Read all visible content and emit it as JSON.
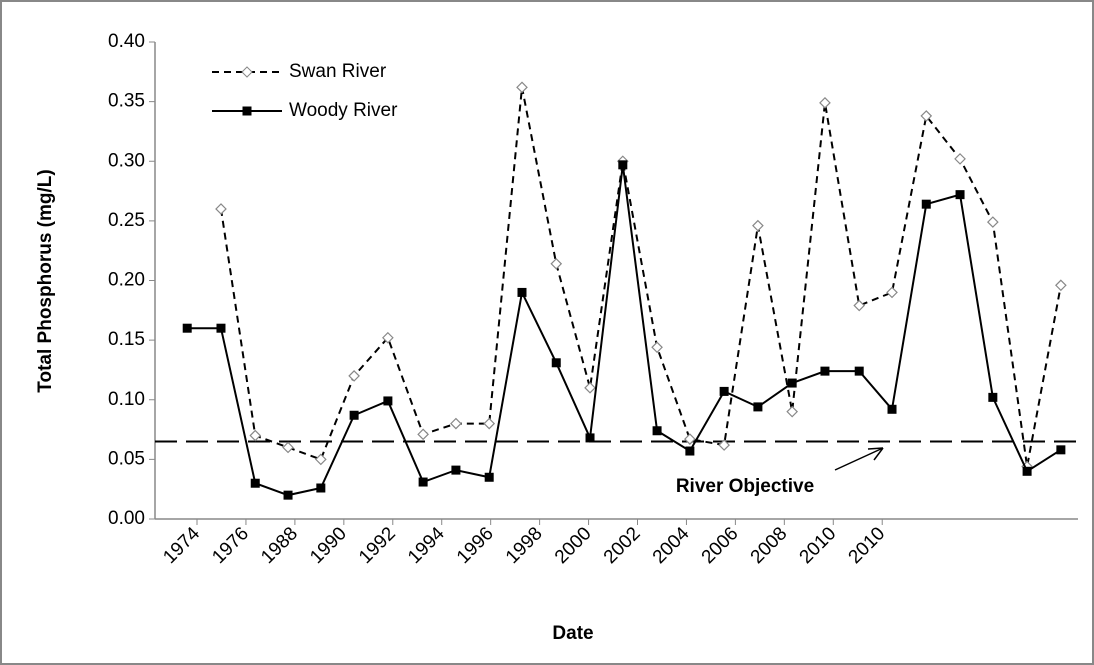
{
  "chart_data": {
    "type": "line",
    "xlabel": "Date",
    "ylabel": "Total Phosphorus (mg/L)",
    "x": [
      -0.2,
      0.49,
      1.19,
      1.86,
      2.53,
      3.21,
      3.9,
      4.62,
      5.29,
      5.97,
      6.64,
      7.34,
      8.03,
      8.7,
      9.4,
      10.07,
      10.77,
      11.46,
      12.16,
      12.83,
      13.53,
      14.2,
      14.9,
      15.59,
      16.26,
      16.96,
      17.65
    ],
    "xlim": [
      -0.86,
      18
    ],
    "xticks": [
      {
        "value": 0,
        "label": "1974"
      },
      {
        "value": 1,
        "label": "1976"
      },
      {
        "value": 2,
        "label": "1988"
      },
      {
        "value": 3,
        "label": "1990"
      },
      {
        "value": 4,
        "label": "1992"
      },
      {
        "value": 5,
        "label": "1994"
      },
      {
        "value": 6,
        "label": "1996"
      },
      {
        "value": 7,
        "label": "1998"
      },
      {
        "value": 8,
        "label": "2000"
      },
      {
        "value": 9,
        "label": "2002"
      },
      {
        "value": 10,
        "label": "2004"
      },
      {
        "value": 11,
        "label": "2006"
      },
      {
        "value": 12,
        "label": "2008"
      },
      {
        "value": 13,
        "label": "2010"
      },
      {
        "value": 14,
        "label": "2010"
      }
    ],
    "ylim": [
      0,
      0.4
    ],
    "yticks": [
      {
        "value": 0,
        "label": "0.00"
      },
      {
        "value": 0.05,
        "label": "0.05"
      },
      {
        "value": 0.1,
        "label": "0.10"
      },
      {
        "value": 0.15,
        "label": "0.15"
      },
      {
        "value": 0.2,
        "label": "0.20"
      },
      {
        "value": 0.25,
        "label": "0.25"
      },
      {
        "value": 0.3,
        "label": "0.30"
      },
      {
        "value": 0.35,
        "label": "0.35"
      },
      {
        "value": 0.4,
        "label": "0.40"
      }
    ],
    "series": [
      {
        "name": "Swan River",
        "color": "#000000",
        "style": "dashed",
        "marker": "diamond",
        "values": [
          null,
          0.26,
          0.07,
          0.06,
          0.05,
          0.12,
          0.152,
          0.071,
          0.08,
          0.08,
          0.362,
          0.214,
          0.11,
          0.3,
          0.144,
          0.067,
          0.062,
          0.246,
          0.09,
          0.349,
          0.179,
          0.19,
          0.338,
          0.302,
          0.249,
          0.044,
          0.196
        ]
      },
      {
        "name": "Woody River",
        "color": "#000000",
        "style": "solid",
        "marker": "square",
        "values": [
          0.16,
          0.16,
          0.03,
          0.02,
          0.026,
          0.087,
          0.099,
          0.031,
          0.041,
          0.035,
          0.19,
          0.131,
          0.068,
          0.297,
          0.074,
          0.057,
          0.107,
          0.094,
          0.114,
          0.124,
          0.124,
          0.092,
          0.264,
          0.272,
          0.102,
          0.04,
          0.058
        ]
      }
    ],
    "objective": {
      "value": 0.065,
      "label": "River Objective"
    },
    "legend": "upper left"
  }
}
